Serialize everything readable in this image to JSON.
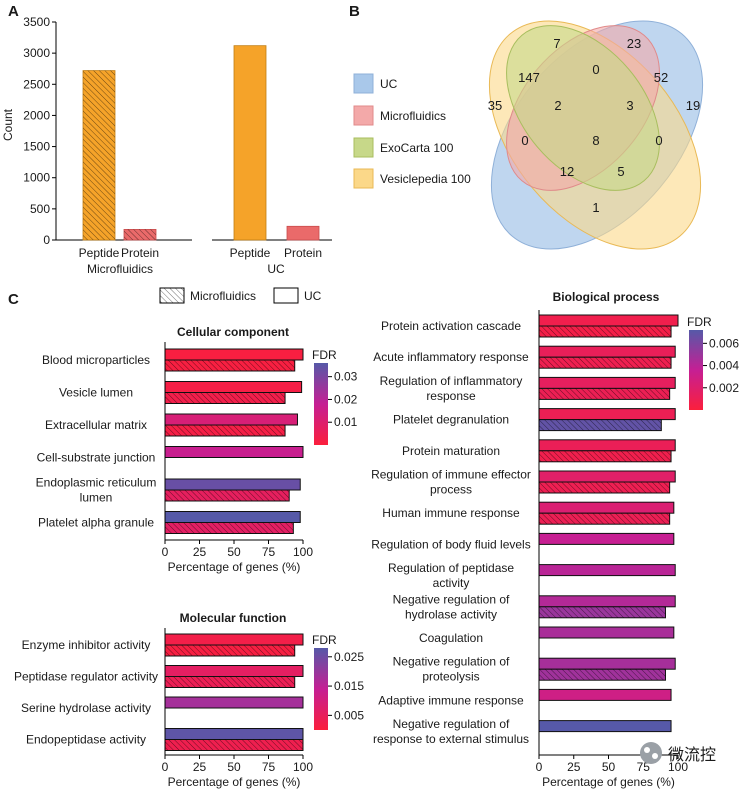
{
  "panel_labels": {
    "a": "A",
    "b": "B",
    "c": "C"
  },
  "colors": {
    "fdr_high": "#5659a8",
    "fdr_mid": "#c51f94",
    "fdr_low": "#fb1f3c",
    "orange": "#f5a329",
    "red_protein": "#ea6a6a",
    "venn_uc": "#a9c8ea",
    "venn_micro": "#f3a9a9",
    "venn_exo": "#c7d889",
    "venn_vesi": "#fbd889"
  },
  "chart_data": [
    {
      "id": "panel_a",
      "type": "bar",
      "title": "",
      "ylabel": "Count",
      "xlabel": "",
      "ylim": [
        0,
        3500
      ],
      "yticks": [
        0,
        500,
        1000,
        1500,
        2000,
        2500,
        3000,
        3500
      ],
      "group_labels": [
        "Microfluidics",
        "UC"
      ],
      "categories": [
        "Peptide",
        "Protein",
        "Peptide",
        "Protein"
      ],
      "groups": [
        0,
        0,
        1,
        1
      ],
      "values": [
        2720,
        170,
        3120,
        220
      ],
      "fills": [
        "orange",
        "red_protein",
        "orange",
        "red_protein"
      ],
      "hatched": [
        true,
        true,
        false,
        false
      ]
    },
    {
      "id": "panel_b",
      "type": "venn",
      "legend": [
        "UC",
        "Microfluidics",
        "ExoCarta 100",
        "Vesiclepedia 100"
      ],
      "regions": [
        "35",
        "7",
        "23",
        "19",
        "147",
        "0",
        "52",
        "2",
        "3",
        "0",
        "8",
        "0",
        "12",
        "5",
        "1"
      ]
    },
    {
      "id": "cellular_component",
      "type": "bar",
      "orientation": "horizontal",
      "title": "Cellular component",
      "xlabel": "Percentage of genes (%)",
      "xlim": [
        0,
        100
      ],
      "xticks": [
        0,
        25,
        50,
        75,
        100
      ],
      "categories": [
        "Blood microparticles",
        "Vesicle lumen",
        "Extracellular matrix",
        "Cell-substrate junction",
        "Endoplasmic reticulum lumen",
        "Platelet alpha granule"
      ],
      "series": [
        {
          "name": "UC",
          "values": [
            100,
            99,
            96,
            100,
            98,
            98
          ],
          "fdr": [
            0.001,
            0.002,
            0.012,
            0.017,
            0.033,
            0.036
          ]
        },
        {
          "name": "Microfluidics",
          "values": [
            94,
            87,
            87,
            null,
            90,
            93
          ],
          "fdr": [
            0.001,
            0.003,
            0.002,
            null,
            0.007,
            0.008
          ]
        }
      ],
      "colorbar": {
        "label": "FDR",
        "ticks": [
          0.03,
          0.02,
          0.01
        ],
        "range": [
          0,
          0.036
        ]
      }
    },
    {
      "id": "molecular_function",
      "type": "bar",
      "orientation": "horizontal",
      "title": "Molecular function",
      "xlabel": "Percentage of genes (%)",
      "xlim": [
        0,
        100
      ],
      "xticks": [
        0,
        25,
        50,
        75,
        100
      ],
      "categories": [
        "Enzyme inhibitor activity",
        "Peptidase regulator activity",
        "Serine hydrolase activity",
        "Endopeptidase activity"
      ],
      "series": [
        {
          "name": "UC",
          "values": [
            100,
            100,
            100,
            100
          ],
          "fdr": [
            0.002,
            0.006,
            0.018,
            0.027
          ]
        },
        {
          "name": "Microfluidics",
          "values": [
            94,
            94,
            null,
            100
          ],
          "fdr": [
            0.001,
            0.004,
            null,
            0.003
          ]
        }
      ],
      "colorbar": {
        "label": "FDR",
        "ticks": [
          0.025,
          0.015,
          0.005
        ],
        "range": [
          0,
          0.028
        ]
      }
    },
    {
      "id": "biological_process",
      "type": "bar",
      "orientation": "horizontal",
      "title": "Biological process",
      "xlabel": "Percentage of genes (%)",
      "xlim": [
        0,
        100
      ],
      "xticks": [
        0,
        25,
        50,
        75,
        100
      ],
      "categories": [
        "Protein activation cascade",
        "Acute inflammatory response",
        "Regulation of inflammatory response",
        "Platelet degranulation",
        "Protein maturation",
        "Regulation of immune effector process",
        "Human immune response",
        "Regulation of body fluid levels",
        "Regulation of peptidase activity",
        "Negative regulation of hydrolase activity",
        "Coagulation",
        "Negative regulation of proteolysis",
        "Adaptive immune response",
        "Negative regulation of response to external stimulus"
      ],
      "series": [
        {
          "name": "UC",
          "values": [
            100,
            98,
            98,
            98,
            98,
            98,
            97,
            97,
            98,
            98,
            97,
            98,
            95,
            95
          ],
          "fdr": [
            0.0007,
            0.0012,
            0.0014,
            0.001,
            0.0011,
            0.0018,
            0.0022,
            0.0035,
            0.004,
            0.0042,
            0.0045,
            0.0046,
            0.003,
            0.0072
          ]
        },
        {
          "name": "Microfluidics",
          "values": [
            95,
            95,
            94,
            88,
            95,
            94,
            94,
            null,
            null,
            91,
            null,
            91,
            null,
            null
          ],
          "fdr": [
            0.0005,
            0.0008,
            0.001,
            0.0068,
            0.0007,
            0.0009,
            0.001,
            null,
            null,
            0.005,
            null,
            0.0048,
            null,
            null
          ]
        }
      ],
      "colorbar": {
        "label": "FDR",
        "ticks": [
          0.006,
          0.004,
          0.002
        ],
        "range": [
          0,
          0.0072
        ]
      }
    }
  ],
  "legend_c": {
    "hatched_label": "Microfluidics",
    "plain_label": "UC"
  },
  "watermark": {
    "text": "微流控"
  }
}
